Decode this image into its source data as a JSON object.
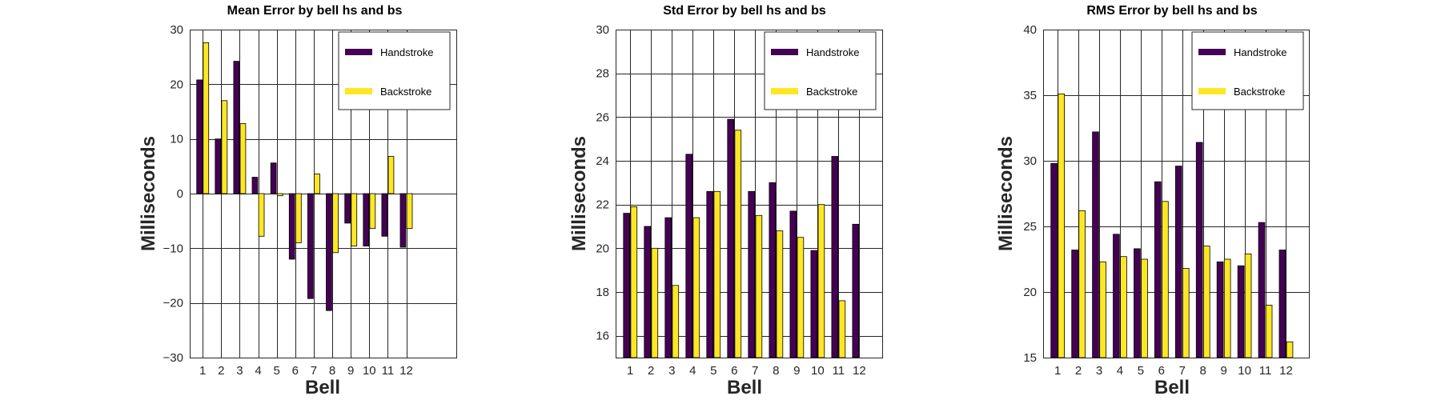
{
  "colors": {
    "handstroke": "#440154",
    "backstroke": "#fde725",
    "grid": "#262626"
  },
  "chart_data": [
    {
      "type": "bar",
      "title": "Mean Error by bell hs and bs",
      "xlabel": "Bell",
      "ylabel": "Milliseconds",
      "categories": [
        "1",
        "2",
        "3",
        "4",
        "5",
        "6",
        "7",
        "8",
        "9",
        "10",
        "11",
        "12"
      ],
      "x_extent": [
        0.3,
        14.7
      ],
      "ylim": [
        -30,
        30
      ],
      "yticks": [
        -30,
        -20,
        -10,
        0,
        10,
        20,
        30
      ],
      "ytick_labels": [
        "−30",
        "−20",
        "−10",
        "0",
        "10",
        "20",
        "30"
      ],
      "grid": true,
      "legend": "top-right",
      "series": [
        {
          "name": "Handstroke",
          "values": [
            20.8,
            10.0,
            24.2,
            3.0,
            5.6,
            -12.0,
            -19.2,
            -21.4,
            -5.4,
            -9.6,
            -7.8,
            -9.8
          ]
        },
        {
          "name": "Backstroke",
          "values": [
            27.6,
            17.0,
            12.8,
            -7.8,
            -0.4,
            -9.0,
            3.6,
            -10.8,
            -9.6,
            -6.4,
            6.8,
            -6.4
          ]
        }
      ]
    },
    {
      "type": "bar",
      "title": "Std Error by bell hs and bs",
      "xlabel": "Bell",
      "ylabel": "Milliseconds",
      "categories": [
        "1",
        "2",
        "3",
        "4",
        "5",
        "6",
        "7",
        "8",
        "9",
        "10",
        "11",
        "12"
      ],
      "x_extent": [
        0.3,
        13.1
      ],
      "ylim": [
        15,
        30
      ],
      "yticks": [
        16,
        18,
        20,
        22,
        24,
        26,
        28,
        30
      ],
      "ytick_labels": [
        "16",
        "18",
        "20",
        "22",
        "24",
        "26",
        "28",
        "30"
      ],
      "grid": true,
      "legend": "top-right",
      "series": [
        {
          "name": "Handstroke",
          "values": [
            21.6,
            21.0,
            21.4,
            24.3,
            22.6,
            25.9,
            22.6,
            23.0,
            21.7,
            19.9,
            24.2,
            21.1
          ]
        },
        {
          "name": "Backstroke",
          "values": [
            21.9,
            20.0,
            18.3,
            21.4,
            22.6,
            25.4,
            21.5,
            20.8,
            20.5,
            22.0,
            17.6,
            15.0
          ]
        }
      ]
    },
    {
      "type": "bar",
      "title": "RMS Error by bell hs and bs",
      "xlabel": "Bell",
      "ylabel": "Milliseconds",
      "categories": [
        "1",
        "2",
        "3",
        "4",
        "5",
        "6",
        "7",
        "8",
        "9",
        "10",
        "11",
        "12"
      ],
      "x_extent": [
        0.3,
        13.1
      ],
      "ylim": [
        15,
        40
      ],
      "yticks": [
        15,
        20,
        25,
        30,
        35,
        40
      ],
      "ytick_labels": [
        "15",
        "20",
        "25",
        "30",
        "35",
        "40"
      ],
      "grid": true,
      "legend": "top-right",
      "series": [
        {
          "name": "Handstroke",
          "values": [
            29.8,
            23.2,
            32.2,
            24.4,
            23.3,
            28.4,
            29.6,
            31.4,
            22.3,
            22.0,
            25.3,
            23.2
          ]
        },
        {
          "name": "Backstroke",
          "values": [
            35.1,
            26.2,
            22.3,
            22.7,
            22.5,
            26.9,
            21.8,
            23.5,
            22.5,
            22.9,
            19.0,
            16.2
          ]
        }
      ]
    }
  ]
}
